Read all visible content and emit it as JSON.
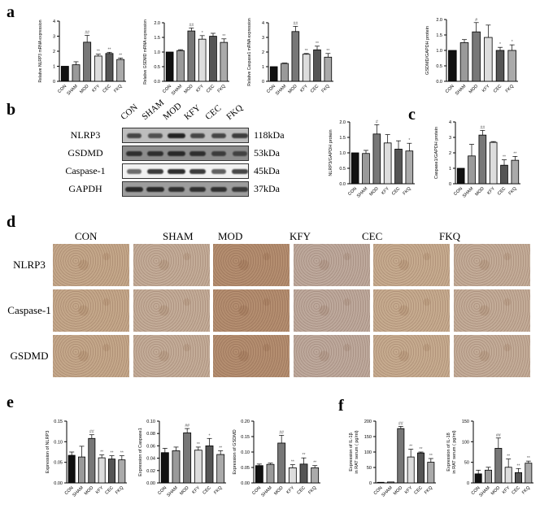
{
  "panel_labels": {
    "a": "a",
    "b": "b",
    "c": "c",
    "d": "d",
    "e": "e",
    "f": "f"
  },
  "groups": [
    "CON",
    "SHAM",
    "MOD",
    "KFY",
    "CEC",
    "FKQ"
  ],
  "group_colors": [
    "#111111",
    "#9a9a9a",
    "#777777",
    "#dddddd",
    "#555555",
    "#aaaaaa"
  ],
  "western_blot": {
    "lanes": [
      "CON",
      "SHAM",
      "MOD",
      "KFY",
      "CEC",
      "FKQ"
    ],
    "rows": [
      {
        "protein": "NLRP3",
        "kda": "118kDa"
      },
      {
        "protein": "GSDMD",
        "kda": "53kDa"
      },
      {
        "protein": "Caspase-1",
        "kda": "45kDa"
      },
      {
        "protein": "GAPDH",
        "kda": "37kDa"
      }
    ]
  },
  "ihc": {
    "columns": [
      "CON",
      "SHAM",
      "MOD",
      "KFY",
      "CEC",
      "FKQ"
    ],
    "rows": [
      "NLRP3",
      "Caspase-1",
      "GSDMD"
    ]
  },
  "chart_data": [
    {
      "panel": "a",
      "type": "bar",
      "ylabel": [
        "Relative NLRP3 mRNA expression"
      ],
      "ylim": [
        0,
        4
      ],
      "yticks": [
        "0",
        "1",
        "2",
        "3",
        "4"
      ],
      "categories": [
        "CON",
        "SHAM",
        "MOD",
        "KFY",
        "CEC",
        "FKQ"
      ],
      "values": [
        1,
        1.1,
        2.6,
        1.68,
        1.85,
        1.45
      ],
      "errors": [
        0,
        0.2,
        0.45,
        0.12,
        0.08,
        0.1
      ],
      "annotations": [
        "",
        "",
        "##",
        "**",
        "**",
        "**"
      ]
    },
    {
      "panel": "a",
      "type": "bar",
      "ylabel": [
        "Relative GSDMD mRNA expression"
      ],
      "ylim": [
        0,
        2
      ],
      "yticks": [
        "0.0",
        "0.5",
        "1.0",
        "1.5",
        "2.0"
      ],
      "categories": [
        "CON",
        "SHAM",
        "MOD",
        "KFY",
        "CEC",
        "FKQ"
      ],
      "values": [
        1,
        1.05,
        1.72,
        1.44,
        1.54,
        1.33
      ],
      "errors": [
        0,
        0.03,
        0.1,
        0.12,
        0.1,
        0.12
      ],
      "annotations": [
        "",
        "",
        "##",
        "*",
        "",
        "**"
      ]
    },
    {
      "panel": "a",
      "type": "bar",
      "ylabel": [
        "Relative Caspase1 mRNA expression"
      ],
      "ylim": [
        0,
        4
      ],
      "yticks": [
        "0",
        "1",
        "2",
        "3",
        "4"
      ],
      "categories": [
        "CON",
        "SHAM",
        "MOD",
        "KFY",
        "CEC",
        "FKQ"
      ],
      "values": [
        1,
        1.22,
        3.4,
        1.85,
        2.15,
        1.65
      ],
      "errors": [
        0,
        0.03,
        0.35,
        0.05,
        0.25,
        0.25
      ],
      "annotations": [
        "",
        "",
        "##",
        "**",
        "**",
        "**"
      ]
    },
    {
      "panel": "a",
      "type": "bar",
      "ylabel": [
        "GSDMD/GAPDH protein"
      ],
      "ylim": [
        0,
        2
      ],
      "yticks": [
        "0.0",
        "0.5",
        "1.0",
        "1.5",
        "2.0"
      ],
      "categories": [
        "CON",
        "SHAM",
        "MOD",
        "KFY",
        "CEC",
        "FKQ"
      ],
      "values": [
        1,
        1.25,
        1.6,
        1.42,
        1.0,
        1.0
      ],
      "errors": [
        0,
        0.1,
        0.3,
        0.4,
        0.1,
        0.18
      ],
      "annotations": [
        "",
        "",
        "#",
        "",
        "*",
        "*"
      ]
    },
    {
      "panel": "b",
      "type": "bar",
      "ylabel": [
        "NLRP3/GAPDH protein"
      ],
      "ylim": [
        0,
        2
      ],
      "yticks": [
        "0.0",
        "0.5",
        "1.0",
        "1.5",
        "2.0"
      ],
      "categories": [
        "CON",
        "SHAM",
        "MOD",
        "KFY",
        "CEC",
        "FKQ"
      ],
      "values": [
        1,
        0.98,
        1.61,
        1.32,
        1.12,
        1.06
      ],
      "errors": [
        0,
        0.1,
        0.3,
        0.27,
        0.27,
        0.25
      ],
      "annotations": [
        "",
        "",
        "#",
        "",
        "",
        "*"
      ]
    },
    {
      "panel": "c",
      "type": "bar",
      "ylabel": [
        "Caspase1/GAPDH protein"
      ],
      "ylim": [
        0,
        4
      ],
      "yticks": [
        "0",
        "1",
        "2",
        "3",
        "4"
      ],
      "categories": [
        "CON",
        "SHAM",
        "MOD",
        "KFY",
        "CEC",
        "FKQ"
      ],
      "values": [
        1,
        1.8,
        3.15,
        2.68,
        1.2,
        1.52
      ],
      "errors": [
        0,
        0.75,
        0.3,
        0.05,
        0.35,
        0.25
      ],
      "annotations": [
        "",
        "",
        "##",
        "",
        "**",
        "**"
      ]
    },
    {
      "panel": "e",
      "type": "bar",
      "ylabel": [
        "Expression of NLRP3"
      ],
      "ylim": [
        0,
        0.15
      ],
      "yticks": [
        "0.00",
        "0.05",
        "0.10",
        "0.15"
      ],
      "categories": [
        "CON",
        "SHAM",
        "MOD",
        "KFY",
        "CEC",
        "FKQ"
      ],
      "values": [
        0.067,
        0.063,
        0.108,
        0.061,
        0.058,
        0.056
      ],
      "errors": [
        0.008,
        0.026,
        0.009,
        0.007,
        0.008,
        0.01
      ],
      "annotations": [
        "",
        "",
        "##",
        "**",
        "**",
        "**"
      ]
    },
    {
      "panel": "e",
      "type": "bar",
      "ylabel": [
        "Expression of Caspase1"
      ],
      "ylim": [
        0,
        0.1
      ],
      "yticks": [
        "0.00",
        "0.02",
        "0.04",
        "0.06",
        "0.08",
        "0.10"
      ],
      "categories": [
        "CON",
        "SHAM",
        "MOD",
        "KFY",
        "CEC",
        "FKQ"
      ],
      "values": [
        0.049,
        0.052,
        0.081,
        0.053,
        0.06,
        0.046
      ],
      "errors": [
        0.007,
        0.006,
        0.007,
        0.005,
        0.012,
        0.006
      ],
      "annotations": [
        "",
        "",
        "##",
        "**",
        "*",
        "**"
      ]
    },
    {
      "panel": "e",
      "type": "bar",
      "ylabel": [
        "Expression of GSDMD"
      ],
      "ylim": [
        0,
        0.2
      ],
      "yticks": [
        "0.00",
        "0.05",
        "0.10",
        "0.15",
        "0.20"
      ],
      "categories": [
        "CON",
        "SHAM",
        "MOD",
        "KFY",
        "CEC",
        "FKQ"
      ],
      "values": [
        0.056,
        0.06,
        0.129,
        0.049,
        0.061,
        0.049
      ],
      "errors": [
        0.005,
        0.004,
        0.025,
        0.01,
        0.02,
        0.007
      ],
      "annotations": [
        "",
        "",
        "##",
        "**",
        "**",
        "**"
      ]
    },
    {
      "panel": "f",
      "type": "bar",
      "ylabel": [
        "Expression of IL-1β",
        "in RAT serum ( pg/ml)"
      ],
      "ylim": [
        0,
        200
      ],
      "yticks": [
        "0",
        "50",
        "100",
        "150",
        "200"
      ],
      "categories": [
        "CON",
        "SHAM",
        "MOD",
        "KFY",
        "CEC",
        "FKQ"
      ],
      "values": [
        2,
        3,
        176,
        84,
        97,
        67
      ],
      "errors": [
        0,
        0,
        7,
        25,
        3,
        12
      ],
      "annotations": [
        "",
        "",
        "##",
        "**",
        "**",
        "**"
      ]
    },
    {
      "panel": "f",
      "type": "bar",
      "ylabel": [
        "Expression of IL-18",
        "in RAT serum ( pg/ml)"
      ],
      "ylim": [
        0,
        150
      ],
      "yticks": [
        "0",
        "50",
        "100",
        "150"
      ],
      "categories": [
        "CON",
        "SHAM",
        "MOD",
        "KFY",
        "CEC",
        "FKQ"
      ],
      "values": [
        22,
        31,
        84,
        38,
        25,
        48
      ],
      "errors": [
        9,
        7,
        25,
        20,
        10,
        5
      ],
      "annotations": [
        "",
        "",
        "##",
        "**",
        "**",
        "**"
      ]
    }
  ]
}
